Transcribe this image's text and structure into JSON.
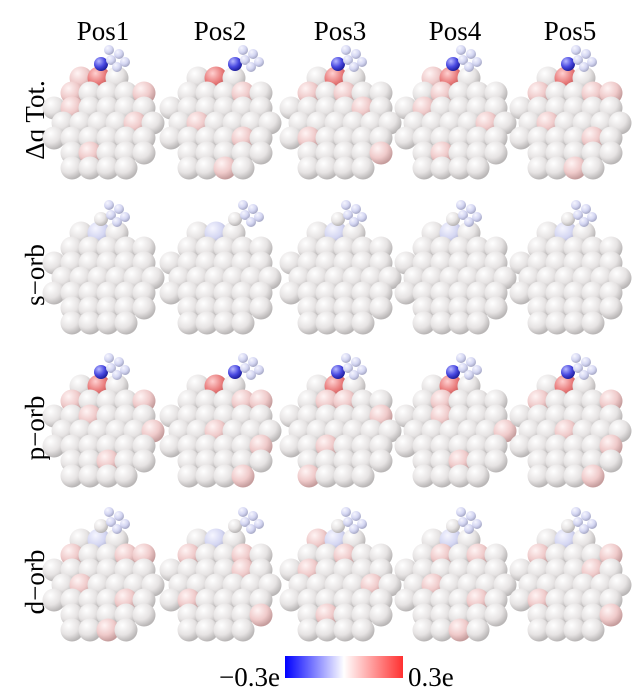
{
  "columns": [
    "Pos1",
    "Pos2",
    "Pos3",
    "Pos4",
    "Pos5"
  ],
  "rows": [
    "Δq Tot.",
    "s−orb",
    "p−orb",
    "d−orb"
  ],
  "colorbar": {
    "min_label": "−0.3e",
    "max_label": "0.3e"
  }
}
